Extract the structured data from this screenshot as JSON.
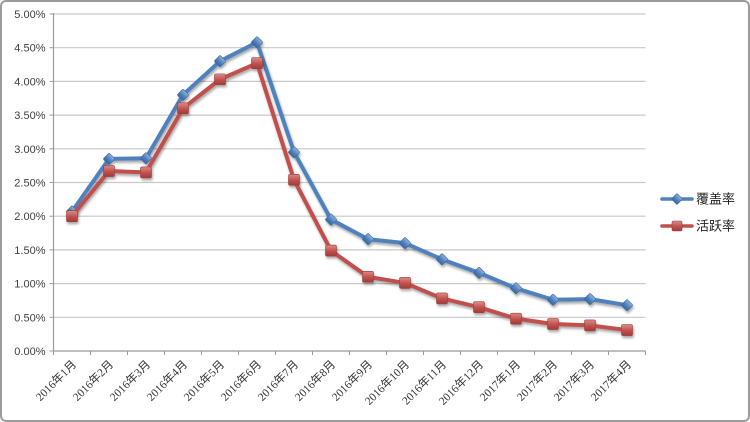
{
  "chart_data": {
    "type": "line",
    "title": "",
    "xlabel": "",
    "ylabel": "",
    "categories": [
      "2016年1月",
      "2016年2月",
      "2016年3月",
      "2016年4月",
      "2016年5月",
      "2016年6月",
      "2016年7月",
      "2016年8月",
      "2016年9月",
      "2016年10月",
      "2016年11月",
      "2016年12月",
      "2017年1月",
      "2017年2月",
      "2017年3月",
      "2017年4月"
    ],
    "series": [
      {
        "name": "覆盖率",
        "marker": "diamond",
        "color": "#4F81BD",
        "values": [
          2.07,
          2.85,
          2.86,
          3.8,
          4.3,
          4.58,
          2.95,
          1.95,
          1.66,
          1.6,
          1.36,
          1.16,
          0.93,
          0.76,
          0.77,
          0.68
        ]
      },
      {
        "name": "活跃率",
        "marker": "square",
        "color": "#C0504D",
        "values": [
          2.0,
          2.67,
          2.65,
          3.6,
          4.03,
          4.27,
          2.54,
          1.49,
          1.1,
          1.01,
          0.78,
          0.65,
          0.48,
          0.4,
          0.38,
          0.31
        ]
      }
    ],
    "ylim": [
      0,
      5
    ],
    "ytick_step": 0.5,
    "ytick_labels": [
      "0.00%",
      "0.50%",
      "1.00%",
      "1.50%",
      "2.00%",
      "2.50%",
      "3.00%",
      "3.50%",
      "4.00%",
      "4.50%",
      "5.00%"
    ],
    "grid": "horizontal",
    "legend_position": "right",
    "x_labels_rotated_degrees": 45
  },
  "colors": {
    "background": "#FFFFFF",
    "frame_border": "#9B9B9B",
    "gridline": "#C9C9C9",
    "axis": "#9B9B9B",
    "series_blue": "#4F81BD",
    "series_red": "#C0504D",
    "tick_text": "#3F3F3F"
  }
}
